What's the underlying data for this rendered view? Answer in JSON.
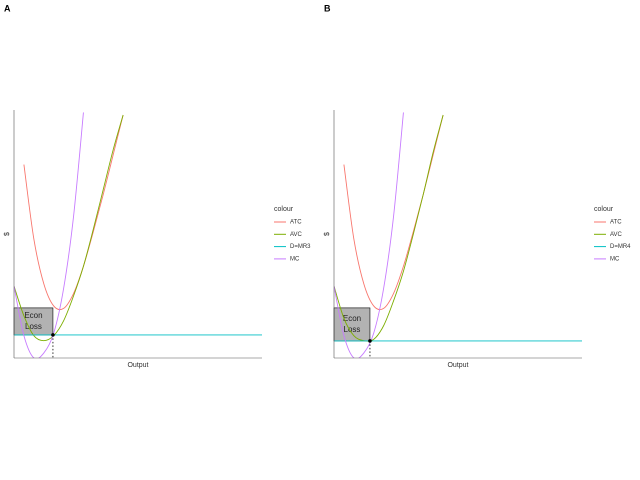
{
  "chart_data": [
    {
      "type": "line",
      "tag": "A",
      "xlabel": "Output",
      "ylabel": "$",
      "legend_title": "colour",
      "legend": "right",
      "xlim": [
        0,
        100
      ],
      "ylim": [
        0,
        100
      ],
      "x": [
        0,
        4,
        8,
        12,
        16,
        20,
        24,
        28,
        32,
        36,
        40,
        44,
        100
      ],
      "series": [
        {
          "name": "ATC",
          "color": "#F8766D",
          "values": [
            null,
            78,
            48,
            30,
            21,
            20,
            26,
            37,
            51,
            66,
            82,
            98,
            null
          ]
        },
        {
          "name": "AVC",
          "color": "#7CAE00",
          "values": [
            29,
            17,
            9,
            7,
            9,
            15,
            25,
            37,
            52,
            68,
            84,
            98,
            null
          ]
        },
        {
          "name": "D=MR3",
          "color": "#00BFC4",
          "values": [
            9.3,
            9.3,
            9.3,
            9.3,
            9.3,
            9.3,
            9.3,
            9.3,
            9.3,
            9.3,
            9.3,
            9.3,
            9.3
          ]
        },
        {
          "name": "MC",
          "color": "#C77CFF",
          "values": [
            29,
            9,
            0,
            2,
            10,
            28,
            57,
            99,
            null,
            null,
            null,
            null,
            null
          ]
        }
      ],
      "loss_rect": {
        "x": [
          0,
          15.7
        ],
        "y": [
          9.3,
          20.2
        ],
        "label": [
          "Econ",
          "Loss"
        ]
      }
    },
    {
      "type": "line",
      "tag": "B",
      "xlabel": "Output",
      "ylabel": "$",
      "legend_title": "colour",
      "legend": "right",
      "xlim": [
        0,
        100
      ],
      "ylim": [
        0,
        100
      ],
      "x": [
        0,
        4,
        8,
        12,
        16,
        20,
        24,
        28,
        32,
        36,
        40,
        44,
        100
      ],
      "series": [
        {
          "name": "ATC",
          "color": "#F8766D",
          "values": [
            null,
            78,
            48,
            30,
            21,
            20,
            26,
            37,
            51,
            66,
            82,
            98,
            null
          ]
        },
        {
          "name": "AVC",
          "color": "#7CAE00",
          "values": [
            29,
            16,
            9,
            7,
            7.5,
            13,
            23,
            35,
            50,
            66,
            83,
            98,
            null
          ]
        },
        {
          "name": "D=MR4",
          "color": "#00BFC4",
          "values": [
            6.9,
            6.9,
            6.9,
            6.9,
            6.9,
            6.9,
            6.9,
            6.9,
            6.9,
            6.9,
            6.9,
            6.9,
            6.9
          ]
        },
        {
          "name": "MC",
          "color": "#C77CFF",
          "values": [
            29,
            9,
            0,
            2,
            10,
            28,
            57,
            99,
            null,
            null,
            null,
            null,
            null
          ]
        }
      ],
      "loss_rect": {
        "x": [
          0,
          14.5
        ],
        "y": [
          6.9,
          20.2
        ],
        "label": [
          "Econ",
          "Loss"
        ]
      }
    }
  ]
}
